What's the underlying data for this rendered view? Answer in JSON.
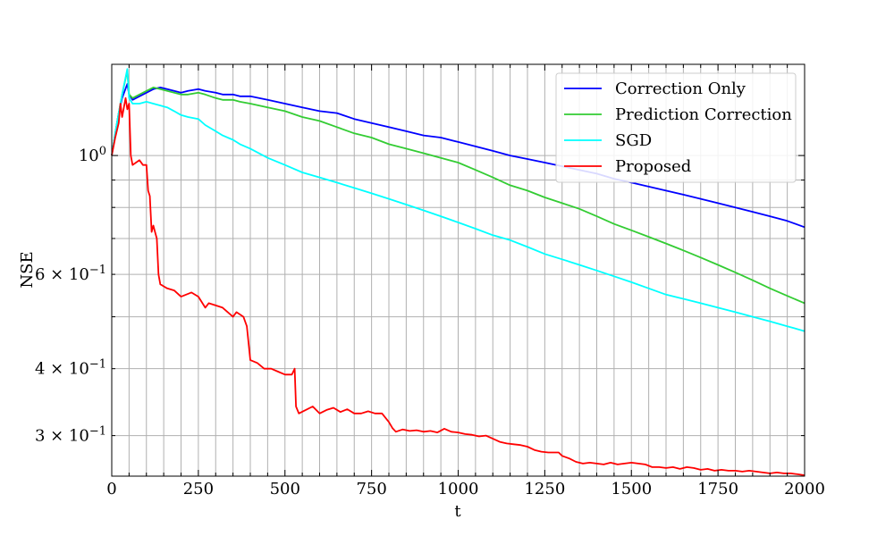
{
  "chart_data": {
    "type": "line",
    "xlabel": "t",
    "ylabel": "NSE",
    "xlim": [
      0,
      2000
    ],
    "ylim": [
      0.252,
      1.48
    ],
    "yscale": "log",
    "x_ticks": [
      0,
      250,
      500,
      750,
      1000,
      1250,
      1500,
      1750,
      2000
    ],
    "x_tick_labels": [
      "0",
      "250",
      "500",
      "750",
      "1000",
      "1250",
      "1500",
      "1750",
      "2000"
    ],
    "y_ticks": [
      {
        "value": 1.0,
        "mantissa": "",
        "exponent": "0"
      },
      {
        "value": 0.6,
        "mantissa": "6",
        "exponent": "−1"
      },
      {
        "value": 0.4,
        "mantissa": "4",
        "exponent": "−1"
      },
      {
        "value": 0.3,
        "mantissa": "3",
        "exponent": "−1"
      }
    ],
    "y_tick_base": "10",
    "grid": true,
    "legend_position": "top-right",
    "series": [
      {
        "name": "Correction Only",
        "color": "#0000ff",
        "x": [
          0,
          10,
          20,
          30,
          45,
          50,
          60,
          80,
          100,
          120,
          140,
          160,
          180,
          200,
          220,
          250,
          270,
          300,
          320,
          350,
          370,
          400,
          450,
          500,
          550,
          600,
          650,
          700,
          750,
          800,
          850,
          900,
          950,
          1000,
          1050,
          1100,
          1150,
          1200,
          1250,
          1300,
          1350,
          1400,
          1450,
          1500,
          1550,
          1600,
          1650,
          1700,
          1750,
          1800,
          1850,
          1900,
          1950,
          2000
        ],
        "y": [
          1.0,
          1.1,
          1.2,
          1.28,
          1.36,
          1.3,
          1.27,
          1.29,
          1.31,
          1.33,
          1.34,
          1.33,
          1.32,
          1.31,
          1.32,
          1.33,
          1.32,
          1.31,
          1.3,
          1.3,
          1.29,
          1.29,
          1.27,
          1.25,
          1.23,
          1.21,
          1.2,
          1.17,
          1.15,
          1.13,
          1.11,
          1.09,
          1.08,
          1.06,
          1.04,
          1.02,
          1.0,
          0.985,
          0.97,
          0.955,
          0.94,
          0.925,
          0.905,
          0.89,
          0.875,
          0.86,
          0.845,
          0.83,
          0.815,
          0.8,
          0.785,
          0.77,
          0.755,
          0.735
        ]
      },
      {
        "name": "Prediction Correction",
        "color": "#33cc33",
        "x": [
          0,
          10,
          20,
          30,
          45,
          50,
          60,
          80,
          100,
          120,
          140,
          160,
          180,
          200,
          220,
          250,
          270,
          300,
          320,
          350,
          370,
          400,
          450,
          500,
          550,
          600,
          650,
          700,
          750,
          800,
          850,
          900,
          950,
          1000,
          1050,
          1100,
          1150,
          1200,
          1250,
          1300,
          1350,
          1400,
          1450,
          1500,
          1550,
          1600,
          1650,
          1700,
          1750,
          1800,
          1850,
          1900,
          1950,
          2000
        ],
        "y": [
          1.0,
          1.1,
          1.2,
          1.3,
          1.44,
          1.3,
          1.28,
          1.3,
          1.32,
          1.34,
          1.33,
          1.32,
          1.31,
          1.3,
          1.3,
          1.31,
          1.3,
          1.28,
          1.27,
          1.27,
          1.26,
          1.25,
          1.23,
          1.21,
          1.18,
          1.16,
          1.13,
          1.1,
          1.08,
          1.05,
          1.03,
          1.01,
          0.99,
          0.97,
          0.94,
          0.91,
          0.88,
          0.86,
          0.835,
          0.815,
          0.795,
          0.77,
          0.745,
          0.725,
          0.705,
          0.685,
          0.665,
          0.645,
          0.625,
          0.605,
          0.585,
          0.565,
          0.547,
          0.53
        ]
      },
      {
        "name": "SGD",
        "color": "#00ffff",
        "x": [
          0,
          10,
          20,
          30,
          45,
          50,
          60,
          80,
          100,
          120,
          140,
          160,
          180,
          200,
          220,
          250,
          270,
          300,
          320,
          350,
          370,
          400,
          450,
          500,
          550,
          600,
          650,
          700,
          750,
          800,
          850,
          900,
          950,
          1000,
          1050,
          1100,
          1150,
          1200,
          1250,
          1300,
          1350,
          1400,
          1450,
          1500,
          1550,
          1600,
          1650,
          1700,
          1750,
          1800,
          1850,
          1900,
          1950,
          2000
        ],
        "y": [
          1.0,
          1.1,
          1.2,
          1.3,
          1.45,
          1.28,
          1.25,
          1.25,
          1.26,
          1.25,
          1.24,
          1.23,
          1.21,
          1.19,
          1.18,
          1.17,
          1.14,
          1.11,
          1.09,
          1.07,
          1.05,
          1.03,
          0.99,
          0.96,
          0.93,
          0.91,
          0.89,
          0.87,
          0.85,
          0.83,
          0.81,
          0.79,
          0.77,
          0.75,
          0.73,
          0.71,
          0.695,
          0.675,
          0.655,
          0.64,
          0.625,
          0.61,
          0.595,
          0.58,
          0.565,
          0.55,
          0.54,
          0.53,
          0.52,
          0.51,
          0.5,
          0.49,
          0.48,
          0.47
        ]
      },
      {
        "name": "Proposed",
        "color": "#ff0000",
        "x": [
          0,
          10,
          20,
          25,
          30,
          40,
          45,
          50,
          55,
          60,
          70,
          80,
          90,
          100,
          105,
          110,
          115,
          120,
          125,
          130,
          135,
          140,
          150,
          160,
          180,
          200,
          230,
          250,
          270,
          280,
          300,
          320,
          350,
          360,
          380,
          390,
          400,
          420,
          440,
          460,
          480,
          500,
          510,
          520,
          528,
          532,
          540,
          560,
          580,
          600,
          620,
          640,
          660,
          680,
          700,
          720,
          740,
          760,
          780,
          800,
          810,
          820,
          840,
          860,
          880,
          900,
          920,
          940,
          960,
          980,
          1000,
          1020,
          1040,
          1060,
          1080,
          1100,
          1120,
          1140,
          1160,
          1180,
          1200,
          1220,
          1240,
          1260,
          1270,
          1290,
          1300,
          1320,
          1340,
          1360,
          1380,
          1400,
          1420,
          1440,
          1460,
          1480,
          1500,
          1520,
          1540,
          1560,
          1580,
          1600,
          1620,
          1640,
          1660,
          1680,
          1700,
          1720,
          1740,
          1760,
          1780,
          1800,
          1820,
          1840,
          1860,
          1880,
          1900,
          1920,
          1940,
          1960,
          1980,
          2000
        ],
        "y": [
          1.0,
          1.08,
          1.15,
          1.25,
          1.18,
          1.28,
          1.22,
          1.25,
          1.0,
          0.96,
          0.97,
          0.98,
          0.96,
          0.96,
          0.86,
          0.84,
          0.72,
          0.74,
          0.72,
          0.7,
          0.6,
          0.575,
          0.57,
          0.565,
          0.56,
          0.545,
          0.555,
          0.545,
          0.52,
          0.53,
          0.525,
          0.52,
          0.5,
          0.51,
          0.5,
          0.48,
          0.415,
          0.41,
          0.4,
          0.4,
          0.395,
          0.39,
          0.39,
          0.39,
          0.4,
          0.34,
          0.33,
          0.335,
          0.34,
          0.33,
          0.335,
          0.338,
          0.332,
          0.336,
          0.33,
          0.33,
          0.333,
          0.33,
          0.33,
          0.318,
          0.31,
          0.305,
          0.308,
          0.306,
          0.307,
          0.305,
          0.306,
          0.304,
          0.309,
          0.305,
          0.304,
          0.302,
          0.301,
          0.299,
          0.3,
          0.296,
          0.292,
          0.29,
          0.289,
          0.288,
          0.286,
          0.282,
          0.28,
          0.279,
          0.279,
          0.279,
          0.275,
          0.272,
          0.268,
          0.266,
          0.267,
          0.266,
          0.265,
          0.267,
          0.265,
          0.266,
          0.267,
          0.266,
          0.265,
          0.262,
          0.262,
          0.261,
          0.262,
          0.26,
          0.262,
          0.261,
          0.259,
          0.26,
          0.258,
          0.259,
          0.258,
          0.258,
          0.257,
          0.258,
          0.257,
          0.256,
          0.255,
          0.256,
          0.255,
          0.255,
          0.254,
          0.253
        ]
      }
    ]
  }
}
